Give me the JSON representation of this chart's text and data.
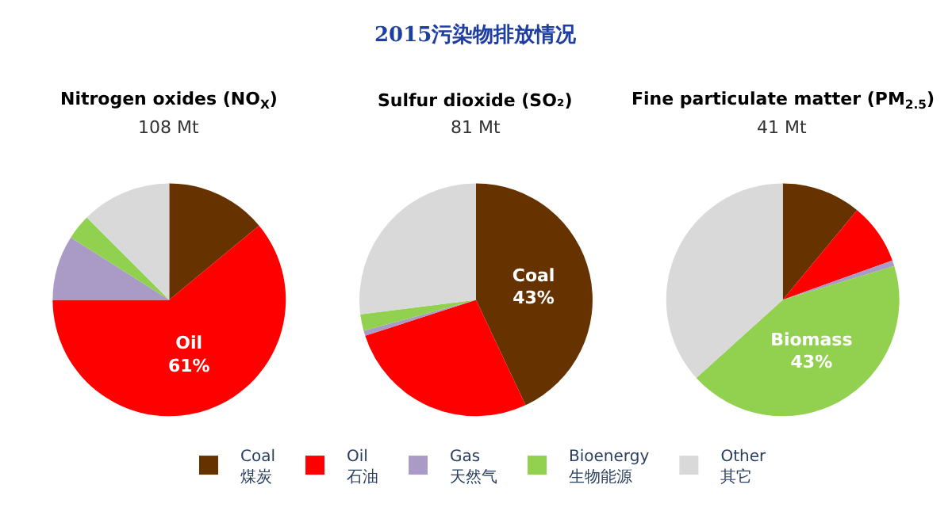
{
  "chart_data": [
    {
      "type": "other",
      "title": "2015污染物排放情况"
    },
    {
      "type": "pie",
      "title": "Nitrogen oxides (NO$_{X}$)",
      "subtitle": "108 Mt",
      "categories": [
        "Coal\n煤炭",
        "Oil\n石油",
        "Gas\n天然气",
        "Bioenergy\n生物能源",
        "Other\n其它"
      ],
      "values": [
        14,
        61,
        9,
        3.5,
        12.5
      ],
      "colors": [
        "#663300",
        "#ff0000",
        "#a99bc6",
        "#92d050",
        "#d9d9d9"
      ],
      "value_labels": [
        null,
        "Oil\n61%",
        null,
        null,
        null
      ],
      "legend": "bottom"
    },
    {
      "type": "pie",
      "title": "Sulfur dioxide (SO₂)",
      "subtitle": "81 Mt",
      "categories": [
        null,
        null,
        null,
        null,
        null
      ],
      "values": [
        43,
        27,
        0.7,
        2.3,
        27
      ],
      "colors": [
        "#663300",
        "#ff0000",
        "#a99bc6",
        "#92d050",
        "#d9d9d9"
      ],
      "value_labels": [
        "Coal\n43%",
        null,
        null,
        null,
        null
      ]
    },
    {
      "type": "pie",
      "title": "Fine particulate matter (PM$_{2.5}$)",
      "subtitle": "41 Mt",
      "categories": [
        null,
        null,
        null,
        null,
        null
      ],
      "values": [
        11,
        8.5,
        0.8,
        43,
        36.7
      ],
      "colors": [
        "#663300",
        "#ff0000",
        "#a99bc6",
        "#92d050",
        "#d9d9d9"
      ],
      "value_labels": [
        null,
        null,
        null,
        "Biomass\n43%",
        null
      ]
    }
  ]
}
